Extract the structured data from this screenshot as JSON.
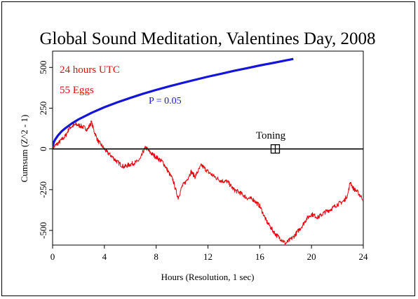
{
  "chart_data": {
    "type": "line",
    "title": "Global Sound Meditation, Valentines Day, 2008",
    "xlabel": "Hours (Resolution, 1 sec)",
    "ylabel": "Cumsum (Z^2 - 1)",
    "xlim": [
      0,
      24
    ],
    "ylim": [
      -590,
      600
    ],
    "x_ticks": [
      0,
      4,
      8,
      12,
      16,
      20,
      24
    ],
    "y_ticks": [
      -500,
      -250,
      0,
      250,
      500
    ],
    "annotations": {
      "line1": "24 hours UTC",
      "line2": "55 Eggs",
      "p_label": "P = 0.05",
      "event_label": "Toning",
      "event_marker": {
        "x": 17.2,
        "y": 0
      }
    },
    "colors": {
      "data": "#e8000b",
      "probability": "#1515d8",
      "annotation": "#d81010"
    },
    "series": [
      {
        "name": "P = 0.05",
        "color": "#1515d8",
        "x": [
          0,
          0.05,
          0.1,
          0.2,
          0.4,
          0.7,
          1,
          1.5,
          2,
          3,
          4,
          5,
          6,
          7,
          8,
          9,
          10,
          11,
          12,
          13,
          14,
          15,
          16,
          17,
          18,
          18.6
        ],
        "y": [
          0,
          29,
          41,
          58,
          81,
          108,
          128,
          157,
          181,
          221,
          256,
          286,
          313,
          339,
          362,
          384,
          404,
          424,
          443,
          461,
          479,
          495,
          512,
          527,
          543,
          552
        ]
      },
      {
        "name": "Cumsum",
        "color": "#e8000b",
        "x": [
          0,
          0.2,
          0.5,
          1.0,
          1.3,
          1.8,
          2.2,
          2.7,
          3.0,
          3.2,
          3.5,
          4.0,
          4.2,
          4.5,
          5.0,
          5.5,
          6.0,
          6.5,
          6.8,
          7.0,
          7.2,
          7.5,
          8.0,
          8.5,
          8.8,
          9.0,
          9.3,
          9.5,
          9.7,
          10.0,
          10.3,
          10.7,
          11.0,
          11.5,
          12.0,
          12.5,
          13.0,
          13.5,
          14.0,
          14.5,
          15.0,
          15.5,
          16.0,
          16.5,
          17.0,
          17.3,
          17.6,
          18.0,
          18.3,
          18.6,
          19.0,
          19.3,
          19.6,
          20.0,
          20.5,
          21.0,
          21.5,
          22.0,
          22.5,
          22.8,
          23.0,
          23.2,
          23.5,
          23.8,
          24.0
        ],
        "y": [
          0,
          20,
          40,
          80,
          130,
          150,
          140,
          120,
          165,
          110,
          50,
          0,
          -20,
          -40,
          -80,
          -110,
          -95,
          -80,
          -60,
          -15,
          10,
          -20,
          -50,
          -80,
          -120,
          -150,
          -190,
          -250,
          -300,
          -230,
          -200,
          -140,
          -170,
          -100,
          -140,
          -170,
          -195,
          -200,
          -250,
          -270,
          -300,
          -310,
          -350,
          -440,
          -500,
          -530,
          -550,
          -580,
          -560,
          -540,
          -500,
          -470,
          -430,
          -400,
          -420,
          -390,
          -370,
          -340,
          -320,
          -280,
          -200,
          -240,
          -260,
          -290,
          -310
        ]
      },
      {
        "name": "Zero",
        "color": "#000000",
        "x": [
          0,
          24
        ],
        "y": [
          0,
          0
        ]
      }
    ]
  }
}
